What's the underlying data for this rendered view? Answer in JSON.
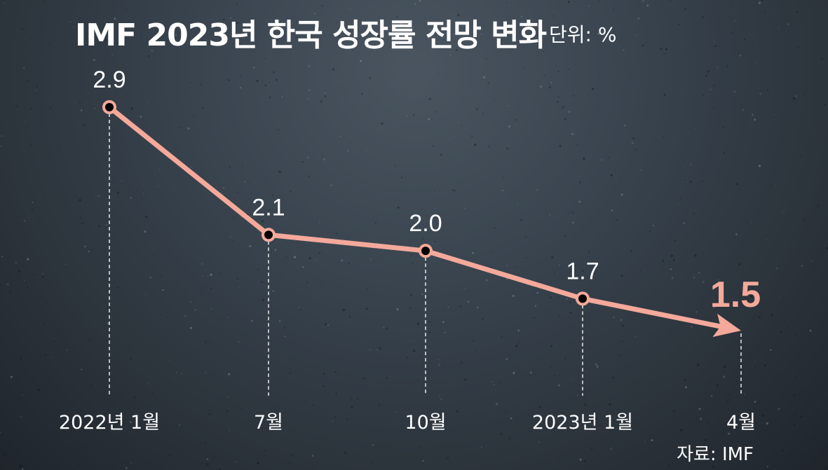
{
  "chart_data": {
    "type": "line",
    "title": "IMF 2023년 한국 성장률 전망 변화",
    "unit_label": "단위: %",
    "source": "자료: IMF",
    "categories": [
      "2022년 1월",
      "7월",
      "10월",
      "2023년 1월",
      "4월"
    ],
    "series": [
      {
        "values": [
          2.9,
          2.1,
          2.0,
          1.7,
          1.5
        ],
        "value_labels": [
          "2.9",
          "2.1",
          "2.0",
          "1.7",
          "1.5"
        ]
      }
    ],
    "ylim": [
      1.5,
      2.9
    ],
    "grid": false,
    "colors": {
      "line": "#f4a99a",
      "highlight_label": "#f4a99a",
      "point_fill": "#000000",
      "guide": "#ffffff"
    }
  }
}
